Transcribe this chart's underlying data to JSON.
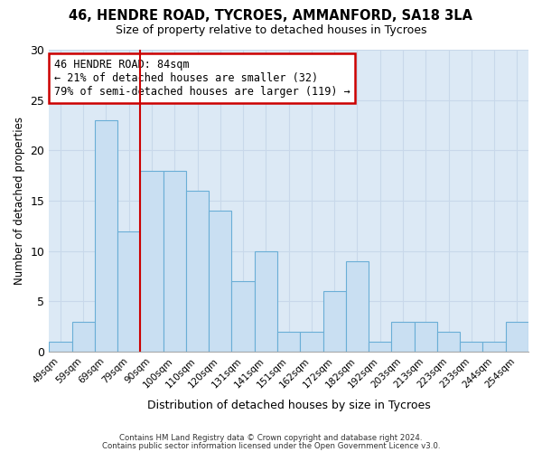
{
  "title1": "46, HENDRE ROAD, TYCROES, AMMANFORD, SA18 3LA",
  "title2": "Size of property relative to detached houses in Tycroes",
  "xlabel": "Distribution of detached houses by size in Tycroes",
  "ylabel": "Number of detached properties",
  "categories": [
    "49sqm",
    "59sqm",
    "69sqm",
    "79sqm",
    "90sqm",
    "100sqm",
    "110sqm",
    "120sqm",
    "131sqm",
    "141sqm",
    "151sqm",
    "162sqm",
    "172sqm",
    "182sqm",
    "192sqm",
    "203sqm",
    "213sqm",
    "223sqm",
    "233sqm",
    "244sqm",
    "254sqm"
  ],
  "values": [
    1,
    3,
    23,
    12,
    18,
    18,
    16,
    14,
    7,
    10,
    2,
    2,
    6,
    9,
    1,
    3,
    3,
    2,
    1,
    1,
    3
  ],
  "bar_color": "#c9dff2",
  "bar_edge_color": "#6aaed6",
  "grid_color": "#c8d8ea",
  "vline_color": "#cc0000",
  "annotation_text": "46 HENDRE ROAD: 84sqm\n← 21% of detached houses are smaller (32)\n79% of semi-detached houses are larger (119) →",
  "annotation_box_color": "#ffffff",
  "annotation_box_edge": "#cc0000",
  "footer1": "Contains HM Land Registry data © Crown copyright and database right 2024.",
  "footer2": "Contains public sector information licensed under the Open Government Licence v3.0.",
  "ylim": [
    0,
    30
  ],
  "yticks": [
    0,
    5,
    10,
    15,
    20,
    25,
    30
  ],
  "bg_color": "#ffffff",
  "plot_bg_color": "#dce9f5"
}
